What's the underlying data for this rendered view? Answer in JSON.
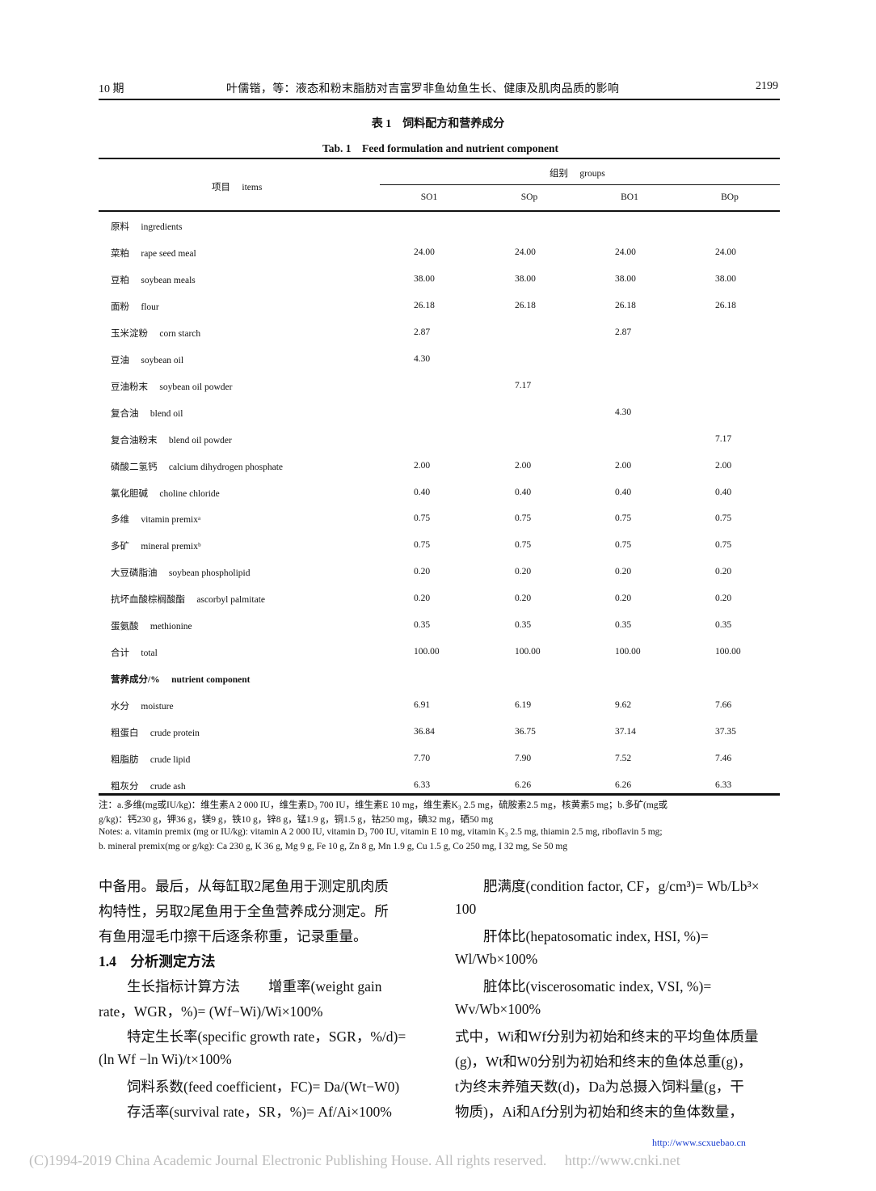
{
  "header": {
    "issue": "10 期",
    "running_title": "叶儒锴，等：液态和粉末脂肪对吉富罗非鱼幼鱼生长、健康及肌肉品质的影响",
    "page_number": "2199"
  },
  "table": {
    "title_cn": "表 1　饲料配方和营养成分",
    "title_en": "Tab. 1　Feed formulation and nutrient component",
    "items_header": "项目　 items",
    "groups_header": "组别　 groups",
    "columns": [
      "SO1",
      "SOp",
      "BO1",
      "BOp"
    ],
    "rows": [
      {
        "label": "原料　 ingredients",
        "values": [
          "",
          "",
          "",
          ""
        ]
      },
      {
        "label": "菜粕　 rape seed meal",
        "values": [
          "24.00",
          "24.00",
          "24.00",
          "24.00"
        ]
      },
      {
        "label": "豆粕　 soybean meals",
        "values": [
          "38.00",
          "38.00",
          "38.00",
          "38.00"
        ]
      },
      {
        "label": "面粉　 flour",
        "values": [
          "26.18",
          "26.18",
          "26.18",
          "26.18"
        ]
      },
      {
        "label": "玉米淀粉　 corn starch",
        "values": [
          "2.87",
          "",
          "2.87",
          ""
        ]
      },
      {
        "label": "豆油　 soybean oil",
        "values": [
          "4.30",
          "",
          "",
          ""
        ]
      },
      {
        "label": "豆油粉末　 soybean oil powder",
        "values": [
          "",
          "7.17",
          "",
          ""
        ]
      },
      {
        "label": "复合油　 blend oil",
        "values": [
          "",
          "",
          "4.30",
          ""
        ]
      },
      {
        "label": "复合油粉末　 blend oil powder",
        "values": [
          "",
          "",
          "",
          "7.17"
        ]
      },
      {
        "label": "磷酸二氢钙　 calcium dihydrogen phosphate",
        "values": [
          "2.00",
          "2.00",
          "2.00",
          "2.00"
        ]
      },
      {
        "label": "氯化胆碱　 choline chloride",
        "values": [
          "0.40",
          "0.40",
          "0.40",
          "0.40"
        ]
      },
      {
        "label": "多维　 vitamin premixᵃ",
        "values": [
          "0.75",
          "0.75",
          "0.75",
          "0.75"
        ]
      },
      {
        "label": "多矿　 mineral premixᵇ",
        "values": [
          "0.75",
          "0.75",
          "0.75",
          "0.75"
        ]
      },
      {
        "label": "大豆磷脂油　 soybean phospholipid",
        "values": [
          "0.20",
          "0.20",
          "0.20",
          "0.20"
        ]
      },
      {
        "label": "抗坏血酸棕榈酸酯　 ascorbyl palmitate",
        "values": [
          "0.20",
          "0.20",
          "0.20",
          "0.20"
        ]
      },
      {
        "label": "蛋氨酸　 methionine",
        "values": [
          "0.35",
          "0.35",
          "0.35",
          "0.35"
        ]
      },
      {
        "label": "合计　 total",
        "values": [
          "100.00",
          "100.00",
          "100.00",
          "100.00"
        ]
      },
      {
        "label": "营养成分/%　 nutrient component",
        "values": [
          "",
          "",
          "",
          ""
        ],
        "bold": true
      },
      {
        "label": "水分　 moisture",
        "values": [
          "6.91",
          "6.19",
          "9.62",
          "7.66"
        ]
      },
      {
        "label": "粗蛋白　 crude protein",
        "values": [
          "36.84",
          "36.75",
          "37.14",
          "37.35"
        ]
      },
      {
        "label": "粗脂肪　 crude lipid",
        "values": [
          "7.70",
          "7.90",
          "7.52",
          "7.46"
        ]
      },
      {
        "label": "粗灰分　 crude ash",
        "values": [
          "6.33",
          "6.26",
          "6.26",
          "6.33"
        ]
      }
    ],
    "notes": [
      "注：a.多维(mg或IU/kg)：维生素A 2 000 IU，维生素D₃ 700 IU，维生素E 10 mg，维生素K₃ 2.5 mg，硫胺素2.5 mg，核黄素5 mg；b.多矿(mg或",
      "g/kg)：钙230 g，钾36 g，镁9 g，铁10 g，锌8 g，锰1.9 g，铜1.5 g，钴250 mg，碘32 mg，硒50 mg",
      "Notes: a. vitamin premix (mg or IU/kg): vitamin A 2 000 IU, vitamin D₃ 700 IU, vitamin E 10 mg, vitamin K₃ 2.5 mg, thiamin 2.5 mg, riboflavin 5 mg;",
      "b. mineral premix(mg or g/kg): Ca 230 g, K 36 g, Mg 9 g, Fe 10 g, Zn 8 g, Mn 1.9 g, Cu 1.5 g, Co 250 mg, I 32 mg, Se 50 mg"
    ]
  },
  "left_column": [
    "中备用。最后，从每缸取2尾鱼用于测定肌肉质",
    "构特性，另取2尾鱼用于全鱼营养成分测定。所",
    "有鱼用湿毛巾擦干后逐条称重，记录重量。",
    "1.4　分析测定方法",
    "　　生长指标计算方法　　增重率(weight gain",
    "rate，WGR，%)= (Wf−Wi)/Wi×100%",
    "　　特定生长率(specific growth rate，SGR，%/d)=",
    "(ln Wf −ln Wi)/t×100%",
    "　　饲料系数(feed coefficient，FC)= Da/(Wt−W0)",
    "　　存活率(survival rate，SR，%)= Af/Ai×100%"
  ],
  "right_column": [
    "　　肥满度(condition factor, CF，g/cm³)= Wb/Lb³×",
    "100",
    "　　肝体比(hepatosomatic index, HSI, %)=",
    "Wl/Wb×100%",
    "　　脏体比(viscerosomatic index, VSI, %)=",
    "Wv/Wb×100%",
    "式中，Wi和Wf分别为初始和终末的平均鱼体质量",
    "(g)，Wt和W0分别为初始和终末的鱼体总重(g)，",
    "t为终末养殖天数(d)，Da为总摄入饲料量(g，干",
    "物质)，Ai和Af分别为初始和终末的鱼体数量，"
  ],
  "footer": {
    "link": "http://www.scxuebao.cn",
    "copyright": "(C)1994-2019 China Academic Journal Electronic Publishing House. All rights reserved.　 http://www.cnki.net"
  },
  "colors": {
    "link": "#1a3fd0",
    "watermark": "#bdbdbd"
  }
}
